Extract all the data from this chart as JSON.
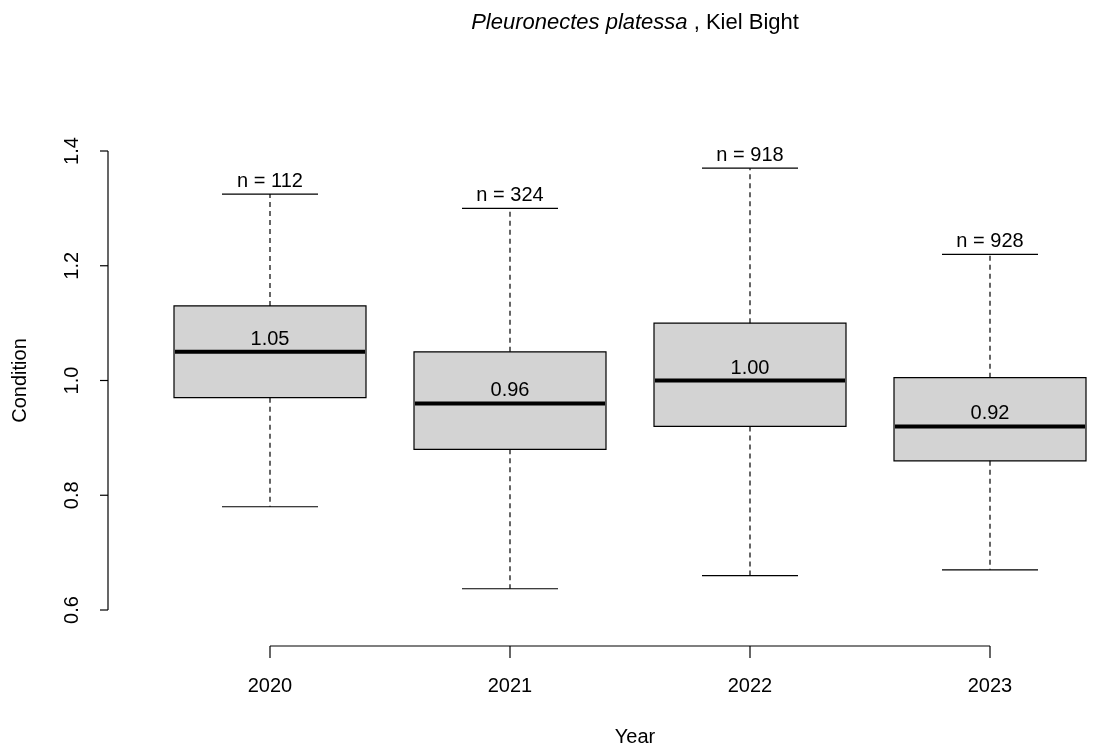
{
  "chart_data": {
    "type": "box",
    "title": "Pleuronectes platessa , Kiel Bight",
    "xlabel": "Year",
    "ylabel": "Condition",
    "categories": [
      "2020",
      "2021",
      "2022",
      "2023"
    ],
    "color": "#d3d3d3",
    "boxes": [
      {
        "low": 0.78,
        "q1": 0.97,
        "median": 1.05,
        "q3": 1.13,
        "high": 1.325
      },
      {
        "low": 0.637,
        "q1": 0.88,
        "median": 0.96,
        "q3": 1.05,
        "high": 1.3
      },
      {
        "low": 0.66,
        "q1": 0.92,
        "median": 1.0,
        "q3": 1.1,
        "high": 1.37
      },
      {
        "low": 0.67,
        "q1": 0.86,
        "median": 0.92,
        "q3": 1.005,
        "high": 1.22
      }
    ],
    "ylim": [
      0.6,
      1.4
    ],
    "yticks": [
      0.6,
      0.8,
      {
        "value": 1,
        "label": "1.0"
      },
      1.2,
      1.4
    ],
    "annotations": [
      {
        "text": "n = 112",
        "x": "2020",
        "y": 1.325
      },
      {
        "text": "n = 324",
        "x": "2021",
        "y": 1.3
      },
      {
        "text": "n = 918",
        "x": "2022",
        "y": 1.37
      },
      {
        "text": "n = 928",
        "x": "2023",
        "y": 1.22
      },
      {
        "text": "1.05",
        "x": "2020",
        "y": 1.05
      },
      {
        "text": "0.96",
        "x": "2021",
        "y": 0.96
      },
      {
        "text": "1.00",
        "x": "2022",
        "y": 1.0
      },
      {
        "text": "0.92",
        "x": "2023",
        "y": 0.92
      }
    ]
  }
}
